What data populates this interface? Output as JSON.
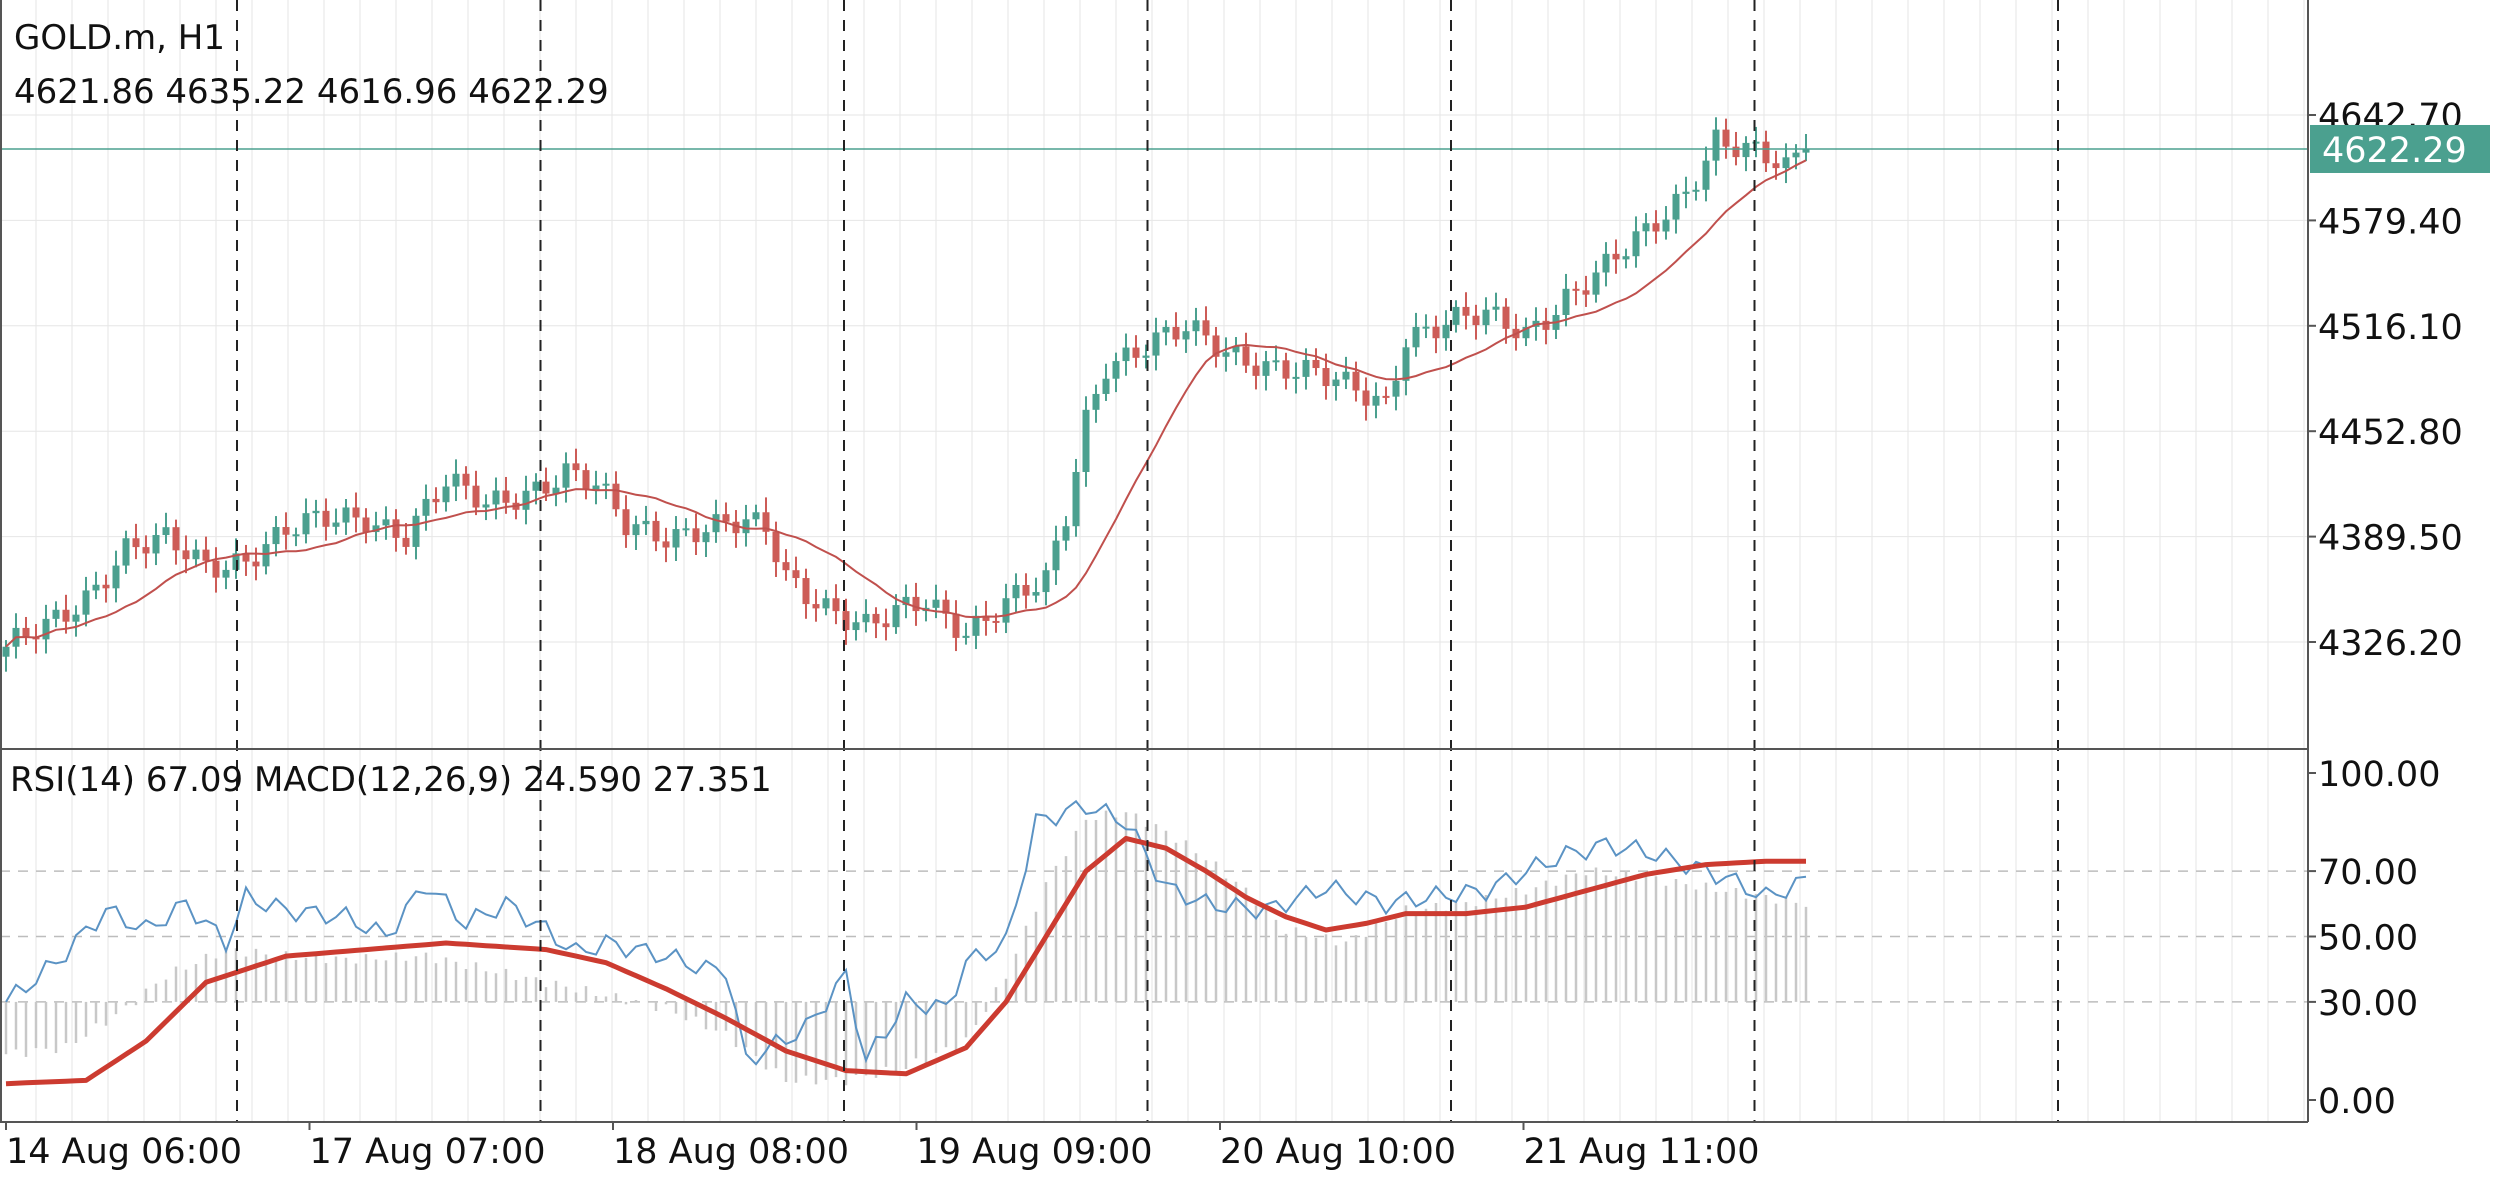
{
  "header": {
    "symbol": "GOLD.m, H1",
    "ohlc": "4621.86 4635.22 4616.96 4622.29"
  },
  "subwindow": {
    "label": "RSI(14) 67.09 MACD(12,26,9) 24.590 27.351"
  },
  "colors": {
    "bull": "#4ba08f",
    "bear": "#cd5c57",
    "ma": "#c0504d",
    "price_line": "#4ba08f",
    "rsi": "#5b93c4",
    "signal": "#cc3b30",
    "macd_hist": "#c8c8c8",
    "grid": "#e6e6e6"
  },
  "chart_data": [
    {
      "type": "candlestick",
      "symbol": "GOLD.m",
      "timeframe": "H1",
      "y_ticks": [
        "4642.70",
        "4579.40",
        "4516.10",
        "4452.80",
        "4389.50",
        "4326.20"
      ],
      "ylim": [
        4270,
        4690
      ],
      "current_price": "4622.29",
      "x_ticks": [
        "14 Aug 06:00",
        "17 Aug 07:00",
        "18 Aug 08:00",
        "19 Aug 09:00",
        "20 Aug 10:00",
        "21 Aug 11:00"
      ],
      "anchors": [
        [
          0,
          4320
        ],
        [
          4,
          4335
        ],
        [
          8,
          4355
        ],
        [
          12,
          4382
        ],
        [
          16,
          4385
        ],
        [
          20,
          4372
        ],
        [
          24,
          4378
        ],
        [
          28,
          4392
        ],
        [
          32,
          4398
        ],
        [
          36,
          4402
        ],
        [
          40,
          4392
        ],
        [
          44,
          4420
        ],
        [
          48,
          4408
        ],
        [
          52,
          4418
        ],
        [
          56,
          4428
        ],
        [
          59,
          4418
        ],
        [
          62,
          4395
        ],
        [
          66,
          4392
        ],
        [
          70,
          4396
        ],
        [
          74,
          4395
        ],
        [
          76,
          4392
        ],
        [
          78,
          4365
        ],
        [
          82,
          4350
        ],
        [
          86,
          4335
        ],
        [
          88,
          4338
        ],
        [
          92,
          4350
        ],
        [
          96,
          4335
        ],
        [
          100,
          4350
        ],
        [
          104,
          4360
        ],
        [
          106,
          4400
        ],
        [
          108,
          4460
        ],
        [
          110,
          4495
        ],
        [
          114,
          4505
        ],
        [
          118,
          4512
        ],
        [
          122,
          4500
        ],
        [
          126,
          4495
        ],
        [
          130,
          4488
        ],
        [
          134,
          4478
        ],
        [
          138,
          4470
        ],
        [
          140,
          4512
        ],
        [
          144,
          4518
        ],
        [
          148,
          4520
        ],
        [
          152,
          4512
        ],
        [
          156,
          4535
        ],
        [
          160,
          4550
        ],
        [
          164,
          4570
        ],
        [
          168,
          4598
        ],
        [
          171,
          4630
        ],
        [
          175,
          4618
        ],
        [
          178,
          4608
        ],
        [
          180,
          4622
        ]
      ]
    },
    {
      "type": "line",
      "name": "RSI(14)",
      "y_ticks": [
        "100.00",
        "70.00",
        "50.00",
        "30.00",
        "0.00"
      ],
      "ylim": [
        0,
        100
      ],
      "levels": [
        70,
        50,
        30
      ],
      "last_value": 67.09,
      "anchors": [
        [
          0,
          30
        ],
        [
          5,
          42
        ],
        [
          10,
          58
        ],
        [
          14,
          52
        ],
        [
          18,
          60
        ],
        [
          22,
          48
        ],
        [
          24,
          62
        ],
        [
          28,
          58
        ],
        [
          34,
          56
        ],
        [
          38,
          50
        ],
        [
          42,
          66
        ],
        [
          46,
          54
        ],
        [
          50,
          60
        ],
        [
          54,
          52
        ],
        [
          57,
          45
        ],
        [
          60,
          48
        ],
        [
          66,
          44
        ],
        [
          70,
          40
        ],
        [
          72,
          40
        ],
        [
          74,
          12
        ],
        [
          80,
          22
        ],
        [
          84,
          38
        ],
        [
          86,
          12
        ],
        [
          90,
          30
        ],
        [
          94,
          28
        ],
        [
          96,
          42
        ],
        [
          100,
          48
        ],
        [
          103,
          85
        ],
        [
          108,
          90
        ],
        [
          112,
          85
        ],
        [
          116,
          65
        ],
        [
          120,
          60
        ],
        [
          126,
          58
        ],
        [
          132,
          65
        ],
        [
          138,
          60
        ],
        [
          142,
          62
        ],
        [
          148,
          64
        ],
        [
          152,
          70
        ],
        [
          156,
          75
        ],
        [
          160,
          78
        ],
        [
          164,
          76
        ],
        [
          168,
          72
        ],
        [
          172,
          68
        ],
        [
          176,
          62
        ],
        [
          180,
          67
        ]
      ]
    },
    {
      "type": "line",
      "name": "MACD(12,26,9)",
      "macd_value": 24.59,
      "signal_value": 27.351,
      "signal_anchors": [
        [
          0,
          5
        ],
        [
          8,
          6
        ],
        [
          14,
          18
        ],
        [
          20,
          36
        ],
        [
          28,
          44
        ],
        [
          36,
          46
        ],
        [
          44,
          48
        ],
        [
          54,
          46
        ],
        [
          60,
          42
        ],
        [
          66,
          34
        ],
        [
          72,
          25
        ],
        [
          78,
          15
        ],
        [
          84,
          9
        ],
        [
          90,
          8
        ],
        [
          96,
          16
        ],
        [
          100,
          30
        ],
        [
          104,
          50
        ],
        [
          108,
          70
        ],
        [
          112,
          80
        ],
        [
          116,
          77
        ],
        [
          120,
          70
        ],
        [
          124,
          62
        ],
        [
          128,
          56
        ],
        [
          132,
          52
        ],
        [
          136,
          54
        ],
        [
          140,
          57
        ],
        [
          146,
          57
        ],
        [
          152,
          59
        ],
        [
          158,
          64
        ],
        [
          164,
          69
        ],
        [
          170,
          72
        ],
        [
          176,
          73
        ],
        [
          180,
          73
        ]
      ],
      "hist_anchors": [
        [
          0,
          -16
        ],
        [
          6,
          -14
        ],
        [
          12,
          -2
        ],
        [
          16,
          8
        ],
        [
          22,
          16
        ],
        [
          28,
          14
        ],
        [
          34,
          13
        ],
        [
          42,
          14
        ],
        [
          48,
          10
        ],
        [
          54,
          6
        ],
        [
          60,
          2
        ],
        [
          66,
          -2
        ],
        [
          72,
          -10
        ],
        [
          78,
          -24
        ],
        [
          84,
          -24
        ],
        [
          90,
          -20
        ],
        [
          96,
          -12
        ],
        [
          100,
          8
        ],
        [
          104,
          36
        ],
        [
          108,
          56
        ],
        [
          112,
          58
        ],
        [
          116,
          52
        ],
        [
          120,
          44
        ],
        [
          124,
          34
        ],
        [
          128,
          22
        ],
        [
          134,
          18
        ],
        [
          140,
          28
        ],
        [
          146,
          30
        ],
        [
          152,
          34
        ],
        [
          158,
          40
        ],
        [
          164,
          38
        ],
        [
          170,
          35
        ],
        [
          176,
          32
        ],
        [
          180,
          30
        ]
      ]
    }
  ]
}
